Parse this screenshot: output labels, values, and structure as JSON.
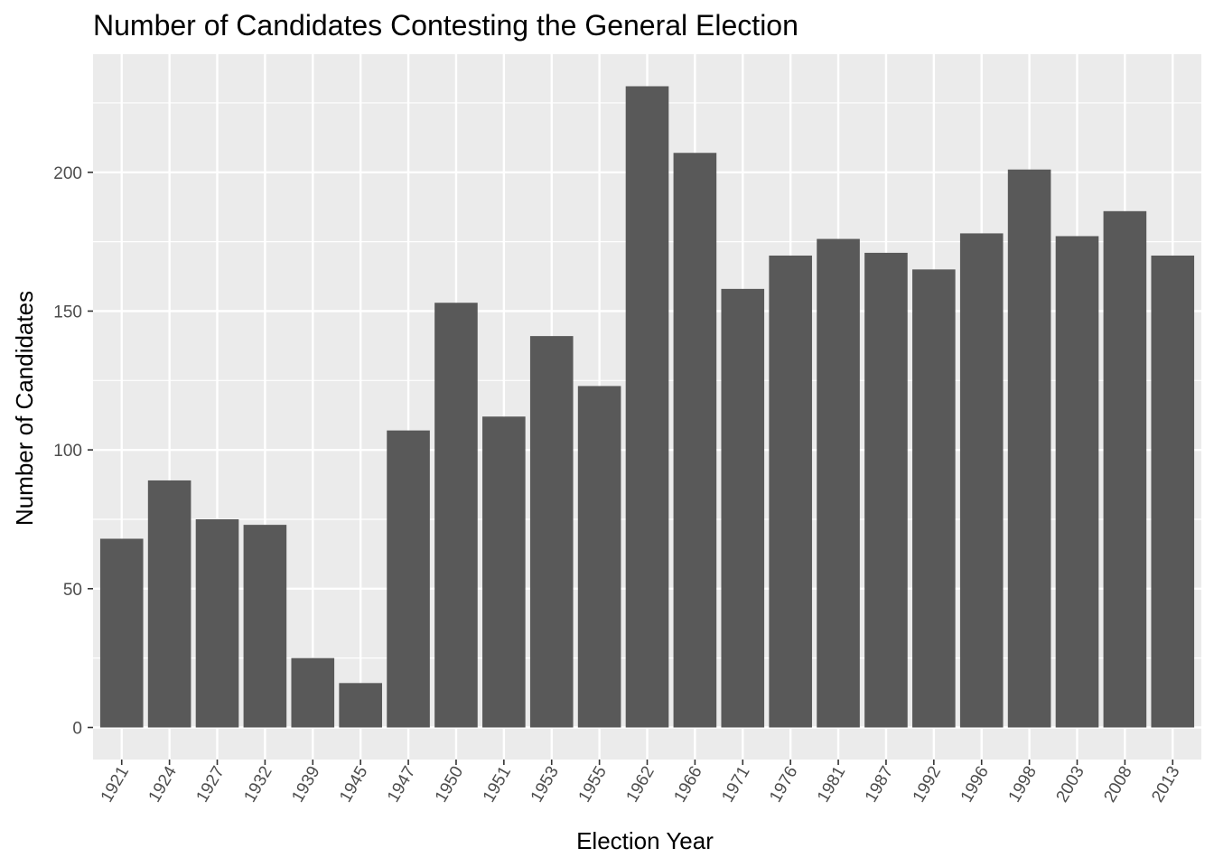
{
  "chart_data": {
    "type": "bar",
    "title": "Number of Candidates Contesting the General Election",
    "xlabel": "Election Year",
    "ylabel": "Number of Candidates",
    "categories": [
      "1921",
      "1924",
      "1927",
      "1932",
      "1939",
      "1945",
      "1947",
      "1950",
      "1951",
      "1953",
      "1955",
      "1962",
      "1966",
      "1971",
      "1976",
      "1981",
      "1987",
      "1992",
      "1996",
      "1998",
      "2003",
      "2008",
      "2013"
    ],
    "values": [
      68,
      89,
      75,
      73,
      25,
      16,
      107,
      153,
      112,
      141,
      123,
      231,
      207,
      158,
      170,
      176,
      171,
      165,
      178,
      201,
      177,
      186,
      170
    ],
    "yticks": [
      0,
      50,
      100,
      150,
      200
    ],
    "ylim": [
      -11.55,
      242.55
    ],
    "grid": true,
    "colors": {
      "bar": "#595959",
      "panel": "#ebebeb",
      "grid": "#ffffff"
    }
  }
}
